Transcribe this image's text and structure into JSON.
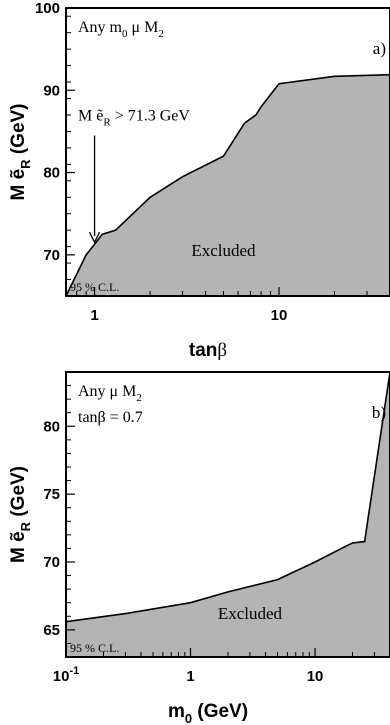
{
  "chart_data": [
    {
      "type": "area",
      "panel_label": "a)",
      "scale_x": "log",
      "xlim": [
        0.7,
        40
      ],
      "ylim": [
        65,
        100
      ],
      "x_ticks": [
        {
          "value": 1,
          "label": "1"
        },
        {
          "value": 10,
          "label": "10"
        }
      ],
      "y_ticks": [
        {
          "value": 70,
          "label": "70"
        },
        {
          "value": 80,
          "label": "80"
        },
        {
          "value": 90,
          "label": "90"
        },
        {
          "value": 100,
          "label": "100"
        }
      ],
      "xlabel_main": "tan",
      "xlabel_greek": "β",
      "ylabel_main": "M ẽ",
      "ylabel_sub": "R",
      "ylabel_unit": " (GeV)",
      "note": {
        "m": "Any m",
        "sub": "0",
        "rest": "  μ  M",
        "sub2": "2"
      },
      "annotation": {
        "text_pre": "M ẽ",
        "sub": "R",
        "text_post": " > 71.3  GeV",
        "value": 71.3,
        "x": 1
      },
      "region_label": "Excluded",
      "cl_label": "95 % C.L.",
      "series": [
        {
          "x": [
            0.7,
            0.9,
            1.0,
            1.1,
            1.3,
            2.0,
            3.0,
            5.0,
            6.5,
            7.5,
            8.0,
            10.0,
            20.0,
            40.0
          ],
          "y": [
            65.0,
            70.0,
            71.3,
            72.5,
            73.0,
            77.0,
            79.5,
            82.0,
            86.0,
            87.0,
            88.0,
            90.8,
            91.7,
            91.9
          ]
        }
      ]
    },
    {
      "type": "area",
      "panel_label": "b)",
      "scale_x": "log",
      "xlim": [
        0.1,
        40
      ],
      "ylim": [
        63,
        84
      ],
      "x_ticks": [
        {
          "value": 0.1,
          "label": "10",
          "sup": "-1"
        },
        {
          "value": 1,
          "label": "1"
        },
        {
          "value": 10,
          "label": "10"
        }
      ],
      "y_ticks": [
        {
          "value": 65,
          "label": "65"
        },
        {
          "value": 70,
          "label": "70"
        },
        {
          "value": 75,
          "label": "75"
        },
        {
          "value": 80,
          "label": "80"
        }
      ],
      "xlabel_main": "m",
      "xlabel_sub": "0",
      "xlabel_unit": " (GeV)",
      "ylabel_main": "M ẽ",
      "ylabel_sub": "R",
      "ylabel_unit": " (GeV)",
      "note": {
        "m": "Any μ  M",
        "sub": "2",
        "line2": "tanβ =  0.7"
      },
      "region_label": "Excluded",
      "cl_label": "95 % C.L.",
      "series": [
        {
          "x": [
            0.1,
            0.3,
            1.0,
            2.0,
            5.0,
            10.0,
            18.0,
            20.0,
            25.0,
            40.0
          ],
          "y": [
            65.6,
            66.2,
            67.0,
            67.8,
            68.7,
            70.0,
            71.2,
            71.4,
            71.5,
            84.0
          ]
        }
      ]
    }
  ]
}
